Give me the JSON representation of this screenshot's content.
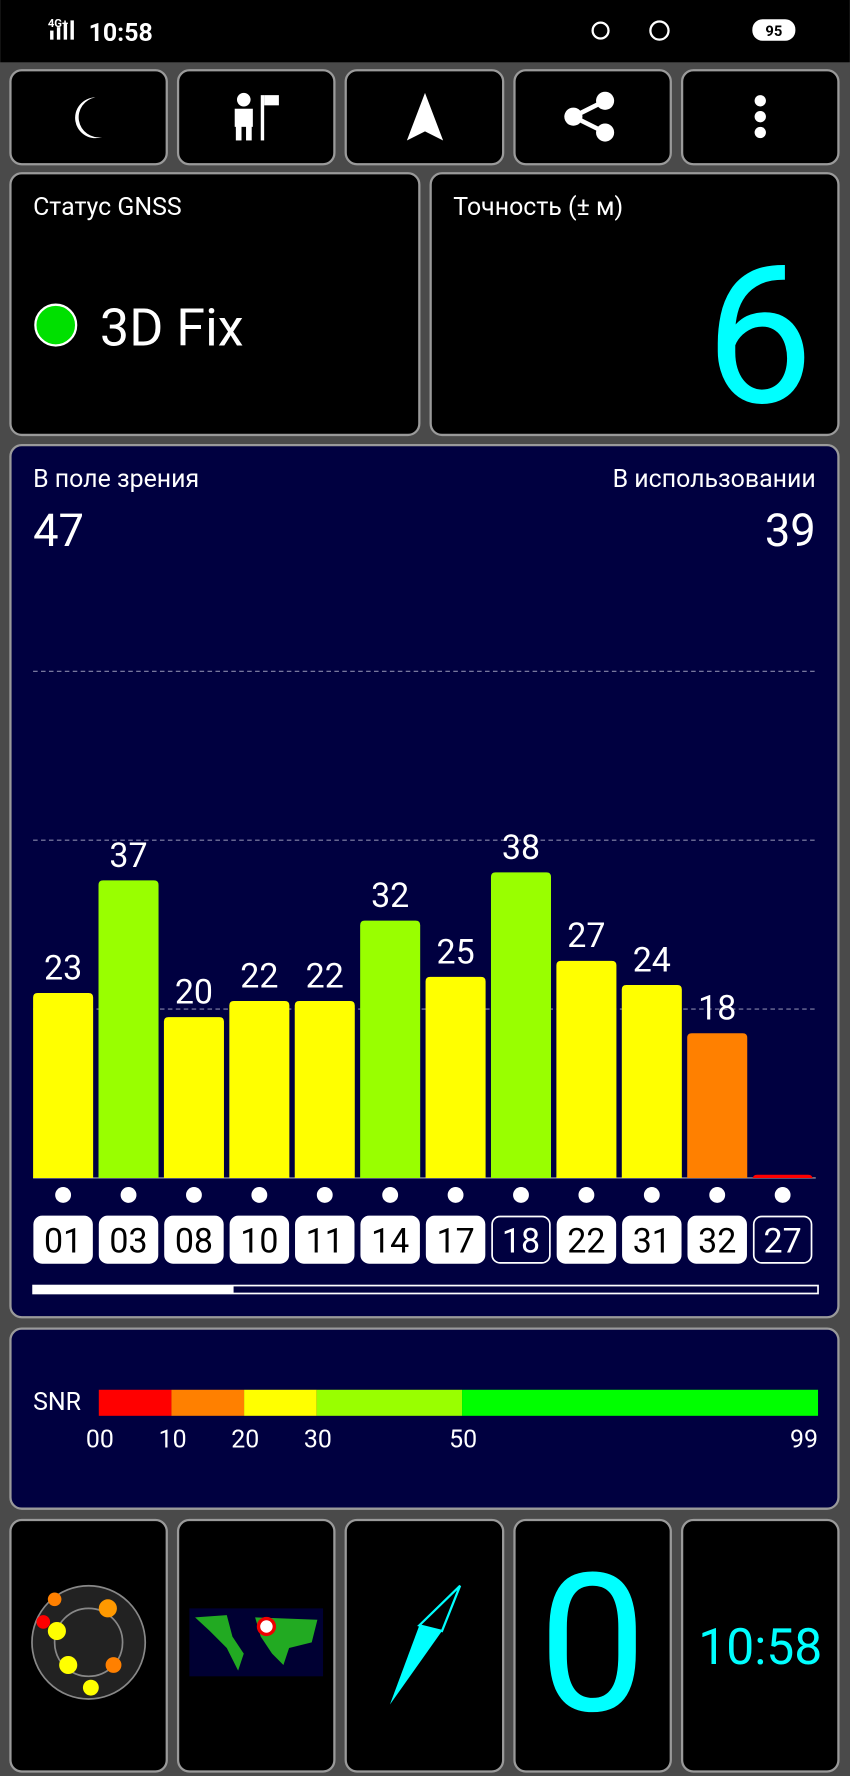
{
  "status_bar": {
    "network": "4G+",
    "time": "10:58",
    "battery": "95"
  },
  "gnss_status": {
    "label": "Статус GNSS",
    "value": "3D Fix"
  },
  "accuracy": {
    "label": "Точность (± м)",
    "value": "6"
  },
  "satellites": {
    "in_view_label": "В поле зрения",
    "in_view": "47",
    "in_use_label": "В использовании",
    "in_use": "39",
    "ids": [
      "01",
      "03",
      "08",
      "10",
      "11",
      "14",
      "17",
      "18",
      "22",
      "31",
      "32",
      "27"
    ],
    "snr": [
      23,
      37,
      20,
      22,
      22,
      32,
      25,
      38,
      27,
      24,
      18,
      0.4
    ],
    "value_labels": [
      "23",
      "37",
      "20",
      "22",
      "22",
      "32",
      "25",
      "38",
      "27",
      "24",
      "18",
      null
    ],
    "colors": [
      "#ffff00",
      "#99ff00",
      "#ffff00",
      "#ffff00",
      "#ffff00",
      "#99ff00",
      "#ffff00",
      "#99ff00",
      "#ffff00",
      "#ffff00",
      "#ff8000",
      "#ff0000"
    ],
    "used": [
      true,
      true,
      true,
      true,
      true,
      true,
      true,
      false,
      true,
      true,
      true,
      false
    ],
    "ylim": [
      0,
      70
    ],
    "grid_values": [
      21,
      42,
      63
    ]
  },
  "snr_legend": {
    "label": "SNR",
    "ticks": [
      {
        "value": 0,
        "label": "00"
      },
      10,
      20,
      30,
      50,
      99
    ],
    "colors": [
      "#ff0000",
      "#ff8000",
      "#ffff00",
      "#99ff00",
      "#00ff00"
    ]
  },
  "speed": "0",
  "clock": "10:58"
}
